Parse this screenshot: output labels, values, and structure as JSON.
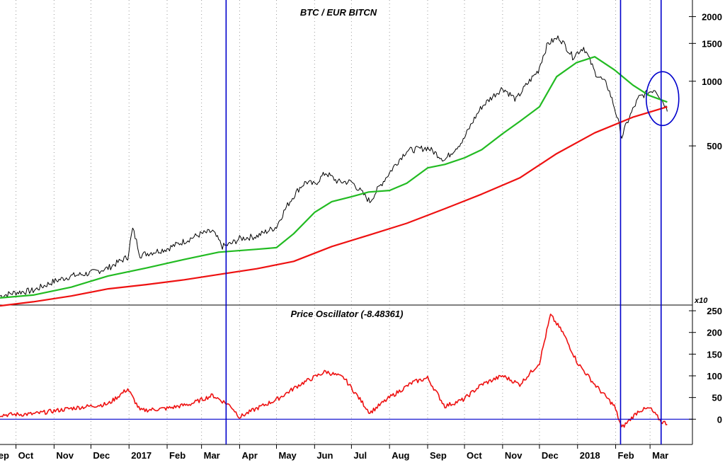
{
  "chart_data": [
    {
      "type": "line",
      "title": "BTC / EUR BITCN",
      "yscale": "log",
      "ylim": [
        95,
        2300
      ],
      "y_ticks": [
        500,
        1000,
        1500,
        2000
      ],
      "y_tick_labels": [
        "500",
        "1000",
        "1500",
        "2000"
      ],
      "grid": "vertical dotted at month starts",
      "series": [
        {
          "color": "#000000",
          "style": "daily price bars",
          "points": [
            [
              "2016-09-18",
              100
            ],
            [
              "2016-10-01",
              104
            ],
            [
              "2016-10-15",
              106
            ],
            [
              "2016-11-01",
              117
            ],
            [
              "2016-11-15",
              124
            ],
            [
              "2016-12-01",
              128
            ],
            [
              "2016-12-15",
              135
            ],
            [
              "2016-12-31",
              152
            ],
            [
              "2017-01-04",
              205
            ],
            [
              "2017-01-10",
              155
            ],
            [
              "2017-01-20",
              160
            ],
            [
              "2017-02-01",
              166
            ],
            [
              "2017-02-15",
              180
            ],
            [
              "2017-03-01",
              195
            ],
            [
              "2017-03-10",
              200
            ],
            [
              "2017-03-18",
              170
            ],
            [
              "2017-03-25",
              175
            ],
            [
              "2017-04-01",
              185
            ],
            [
              "2017-04-15",
              190
            ],
            [
              "2017-05-01",
              210
            ],
            [
              "2017-05-10",
              265
            ],
            [
              "2017-05-20",
              320
            ],
            [
              "2017-05-25",
              340
            ],
            [
              "2017-06-01",
              330
            ],
            [
              "2017-06-10",
              375
            ],
            [
              "2017-06-20",
              340
            ],
            [
              "2017-07-01",
              340
            ],
            [
              "2017-07-16",
              275
            ],
            [
              "2017-07-25",
              330
            ],
            [
              "2017-08-01",
              375
            ],
            [
              "2017-08-15",
              475
            ],
            [
              "2017-09-01",
              490
            ],
            [
              "2017-09-15",
              430
            ],
            [
              "2017-09-30",
              530
            ],
            [
              "2017-10-15",
              760
            ],
            [
              "2017-11-01",
              930
            ],
            [
              "2017-11-12",
              820
            ],
            [
              "2017-11-30",
              1120
            ],
            [
              "2017-12-08",
              1500
            ],
            [
              "2017-12-17",
              1600
            ],
            [
              "2017-12-28",
              1300
            ],
            [
              "2018-01-06",
              1440
            ],
            [
              "2018-01-15",
              1100
            ],
            [
              "2018-01-25",
              960
            ],
            [
              "2018-02-06",
              550
            ],
            [
              "2018-02-20",
              840
            ],
            [
              "2018-03-05",
              920
            ],
            [
              "2018-03-15",
              740
            ]
          ]
        },
        {
          "color": "#22bb22",
          "points": [
            [
              "2016-09-18",
              98
            ],
            [
              "2016-10-15",
              101
            ],
            [
              "2016-11-15",
              110
            ],
            [
              "2016-12-15",
              124
            ],
            [
              "2017-01-15",
              135
            ],
            [
              "2017-02-15",
              148
            ],
            [
              "2017-03-15",
              160
            ],
            [
              "2017-04-15",
              165
            ],
            [
              "2017-05-01",
              168
            ],
            [
              "2017-05-15",
              195
            ],
            [
              "2017-06-01",
              245
            ],
            [
              "2017-06-15",
              275
            ],
            [
              "2017-07-01",
              290
            ],
            [
              "2017-07-15",
              305
            ],
            [
              "2017-08-01",
              310
            ],
            [
              "2017-08-15",
              335
            ],
            [
              "2017-09-01",
              395
            ],
            [
              "2017-09-15",
              410
            ],
            [
              "2017-10-01",
              440
            ],
            [
              "2017-10-15",
              480
            ],
            [
              "2017-11-01",
              570
            ],
            [
              "2017-11-15",
              650
            ],
            [
              "2017-12-01",
              760
            ],
            [
              "2017-12-15",
              1050
            ],
            [
              "2017-12-31",
              1220
            ],
            [
              "2018-01-15",
              1300
            ],
            [
              "2018-01-31",
              1130
            ],
            [
              "2018-02-15",
              960
            ],
            [
              "2018-02-28",
              860
            ],
            [
              "2018-03-15",
              800
            ]
          ]
        },
        {
          "color": "#ee1111",
          "points": [
            [
              "2016-09-18",
              90
            ],
            [
              "2016-10-15",
              94
            ],
            [
              "2016-11-15",
              100
            ],
            [
              "2016-12-15",
              108
            ],
            [
              "2017-01-15",
              113
            ],
            [
              "2017-02-15",
              119
            ],
            [
              "2017-03-15",
              126
            ],
            [
              "2017-04-15",
              134
            ],
            [
              "2017-05-15",
              145
            ],
            [
              "2017-06-15",
              170
            ],
            [
              "2017-07-15",
              192
            ],
            [
              "2017-08-15",
              218
            ],
            [
              "2017-09-15",
              255
            ],
            [
              "2017-10-15",
              298
            ],
            [
              "2017-11-15",
              355
            ],
            [
              "2017-12-15",
              460
            ],
            [
              "2018-01-15",
              575
            ],
            [
              "2018-02-15",
              680
            ],
            [
              "2018-03-15",
              760
            ]
          ]
        }
      ]
    },
    {
      "type": "line",
      "title": "Price Oscillator (-8.48361)",
      "multiplier_label": "x10",
      "ylim": [
        -55,
        255
      ],
      "y_ticks": [
        0,
        50,
        100,
        150,
        200,
        250
      ],
      "y_tick_labels": [
        "0",
        "50",
        "100",
        "150",
        "200",
        "250"
      ],
      "series": [
        {
          "color": "#ee1111",
          "points": [
            [
              "2016-09-18",
              10
            ],
            [
              "2016-10-15",
              12
            ],
            [
              "2016-11-15",
              25
            ],
            [
              "2016-12-15",
              35
            ],
            [
              "2016-12-31",
              70
            ],
            [
              "2017-01-10",
              20
            ],
            [
              "2017-02-01",
              25
            ],
            [
              "2017-02-20",
              35
            ],
            [
              "2017-03-10",
              55
            ],
            [
              "2017-03-25",
              30
            ],
            [
              "2017-04-01",
              5
            ],
            [
              "2017-04-15",
              25
            ],
            [
              "2017-05-01",
              45
            ],
            [
              "2017-05-20",
              80
            ],
            [
              "2017-06-10",
              110
            ],
            [
              "2017-06-25",
              95
            ],
            [
              "2017-07-16",
              15
            ],
            [
              "2017-08-01",
              50
            ],
            [
              "2017-08-20",
              85
            ],
            [
              "2017-09-01",
              95
            ],
            [
              "2017-09-15",
              30
            ],
            [
              "2017-09-30",
              45
            ],
            [
              "2017-10-15",
              80
            ],
            [
              "2017-11-01",
              100
            ],
            [
              "2017-11-15",
              80
            ],
            [
              "2017-12-01",
              130
            ],
            [
              "2017-12-10",
              240
            ],
            [
              "2017-12-20",
              200
            ],
            [
              "2018-01-01",
              130
            ],
            [
              "2018-01-15",
              80
            ],
            [
              "2018-01-31",
              30
            ],
            [
              "2018-02-06",
              -20
            ],
            [
              "2018-02-20",
              20
            ],
            [
              "2018-03-01",
              25
            ],
            [
              "2018-03-10",
              -5
            ],
            [
              "2018-03-15",
              -10
            ]
          ]
        }
      ],
      "reference_line": {
        "y": 0,
        "color": "#0000cc"
      }
    }
  ],
  "x_axis": {
    "labels": [
      "ep",
      "Oct",
      "Nov",
      "Dec",
      "2017",
      "Feb",
      "Mar",
      "Apr",
      "May",
      "Jun",
      "Jul",
      "Aug",
      "Sep",
      "Oct",
      "Nov",
      "Dec",
      "2018",
      "Feb",
      "Mar"
    ],
    "label_dates": [
      "2016-09-15",
      "2016-10-01",
      "2016-11-01",
      "2016-12-01",
      "2017-01-01",
      "2017-02-01",
      "2017-03-01",
      "2017-04-01",
      "2017-05-01",
      "2017-06-01",
      "2017-07-01",
      "2017-08-01",
      "2017-09-01",
      "2017-10-01",
      "2017-11-01",
      "2017-12-01",
      "2018-01-01",
      "2018-02-01",
      "2018-03-01"
    ],
    "range": [
      "2016-09-18",
      "2018-03-28"
    ]
  },
  "annotations": {
    "vertical_lines": [
      "2017-03-21",
      "2018-02-05",
      "2018-03-10"
    ],
    "vertical_line_color": "#0000cc",
    "ellipse": {
      "center": [
        "2018-03-10",
        830
      ],
      "color": "#0000cc"
    }
  }
}
